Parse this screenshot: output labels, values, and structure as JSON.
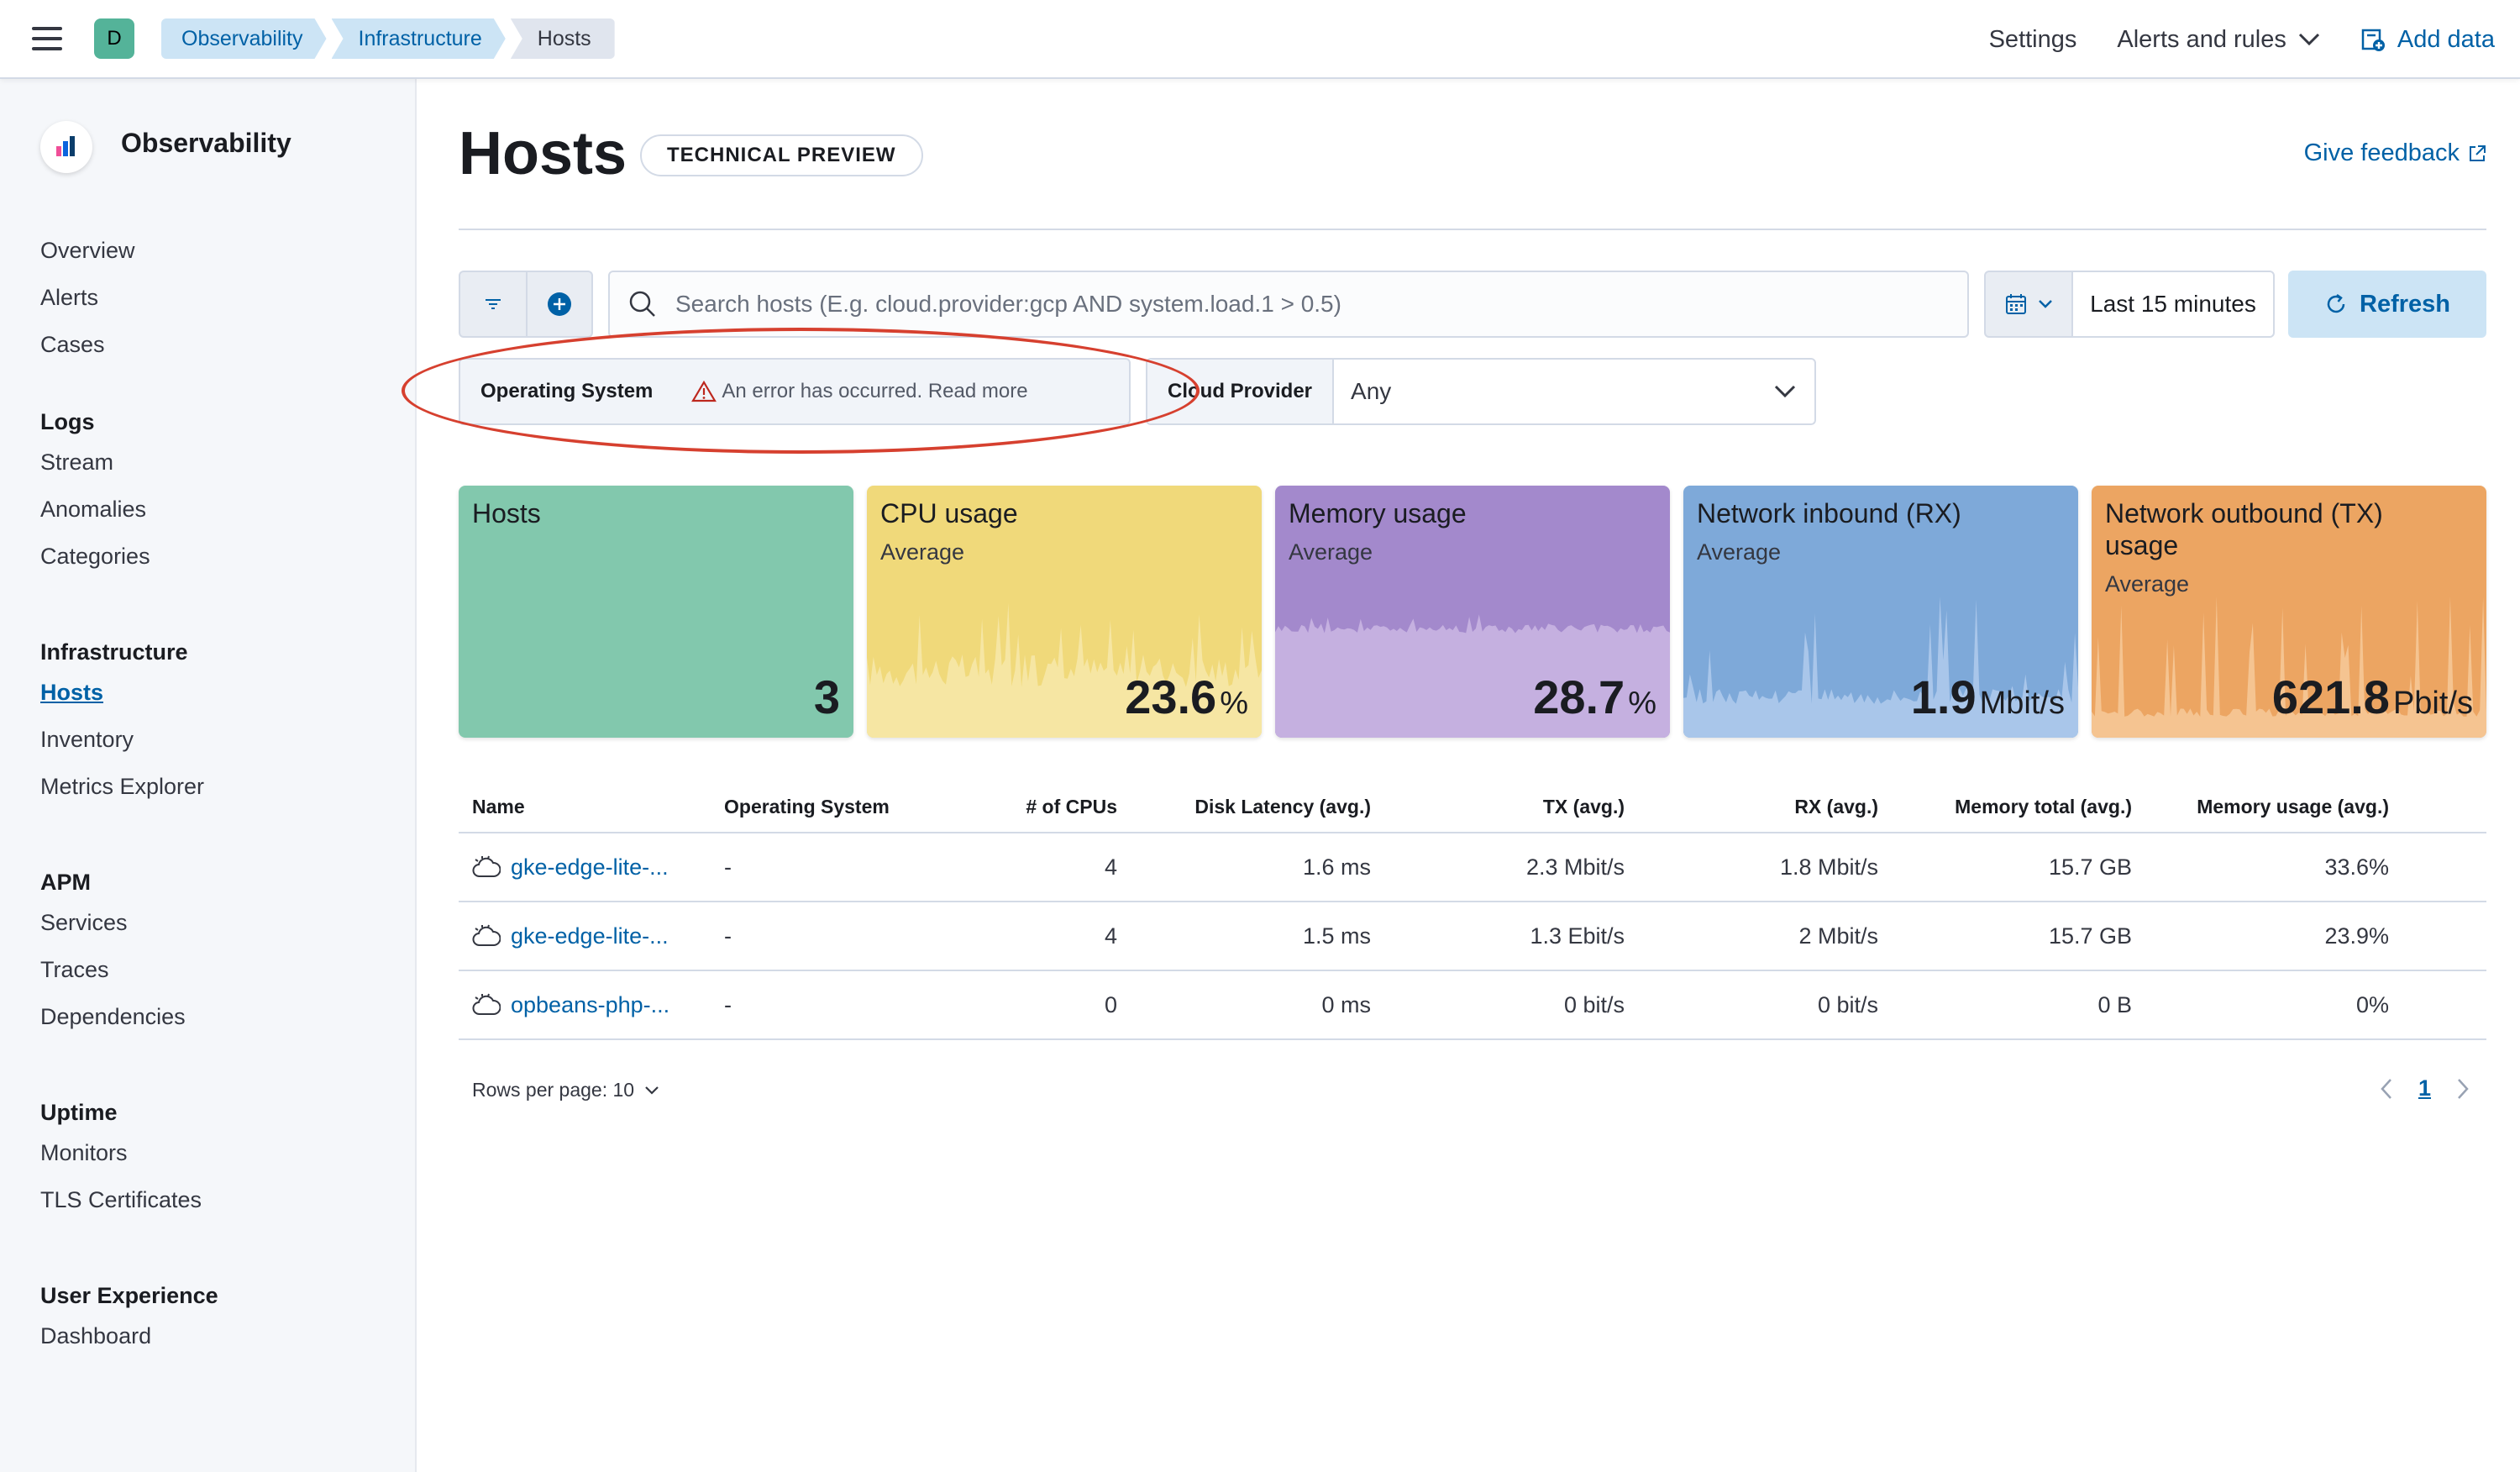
{
  "header": {
    "space_initial": "D",
    "breadcrumbs": [
      "Observability",
      "Infrastructure",
      "Hosts"
    ],
    "settings": "Settings",
    "alerts": "Alerts and rules",
    "add_data": "Add data"
  },
  "sidebar": {
    "title": "Observability",
    "overview": "Overview",
    "alerts": "Alerts",
    "cases": "Cases",
    "logs": {
      "heading": "Logs",
      "items": [
        "Stream",
        "Anomalies",
        "Categories"
      ]
    },
    "infra": {
      "heading": "Infrastructure",
      "items": [
        "Hosts",
        "Inventory",
        "Metrics Explorer"
      ]
    },
    "apm": {
      "heading": "APM",
      "items": [
        "Services",
        "Traces",
        "Dependencies"
      ]
    },
    "uptime": {
      "heading": "Uptime",
      "items": [
        "Monitors",
        "TLS Certificates"
      ]
    },
    "ux": {
      "heading": "User Experience",
      "items": [
        "Dashboard"
      ]
    }
  },
  "page": {
    "title": "Hosts",
    "badge": "TECHNICAL PREVIEW",
    "feedback": "Give feedback"
  },
  "toolbar": {
    "search_placeholder": "Search hosts (E.g. cloud.provider:gcp AND system.load.1 > 0.5)",
    "date_range": "Last 15 minutes",
    "refresh": "Refresh"
  },
  "controls": {
    "os_label": "Operating System",
    "os_error": "An error has occurred. Read more",
    "cloud_label": "Cloud Provider",
    "cloud_value": "Any"
  },
  "kpis": [
    {
      "title": "Hosts",
      "sub": "",
      "value": "3",
      "unit": "",
      "color": "#82c8ad",
      "spark": ""
    },
    {
      "title": "CPU usage",
      "sub": "Average",
      "value": "23.6",
      "unit": "%",
      "color": "#f0d97a",
      "spark": "#f6e6a3"
    },
    {
      "title": "Memory usage",
      "sub": "Average",
      "value": "28.7",
      "unit": "%",
      "color": "#a389cc",
      "spark": "#c5b0e0"
    },
    {
      "title": "Network inbound (RX)",
      "sub": "Average",
      "value": "1.9",
      "unit": "Mbit/s",
      "color": "#7ea9d9",
      "spark": "#a9c6ea"
    },
    {
      "title": "Network outbound (TX) usage",
      "sub": "Average",
      "value": "621.8",
      "unit": "Pbit/s",
      "color": "#eca562",
      "spark": "#f5c491"
    }
  ],
  "table": {
    "columns": [
      "Name",
      "Operating System",
      "# of CPUs",
      "Disk Latency (avg.)",
      "TX (avg.)",
      "RX (avg.)",
      "Memory total (avg.)",
      "Memory usage (avg.)"
    ],
    "rows": [
      [
        "gke-edge-lite-...",
        "-",
        "4",
        "1.6 ms",
        "2.3 Mbit/s",
        "1.8 Mbit/s",
        "15.7 GB",
        "33.6%"
      ],
      [
        "gke-edge-lite-...",
        "-",
        "4",
        "1.5 ms",
        "1.3 Ebit/s",
        "2 Mbit/s",
        "15.7 GB",
        "23.9%"
      ],
      [
        "opbeans-php-...",
        "-",
        "0",
        "0 ms",
        "0 bit/s",
        "0 bit/s",
        "0 B",
        "0%"
      ]
    ],
    "rows_per_page": "Rows per page: 10",
    "current_page": "1"
  }
}
